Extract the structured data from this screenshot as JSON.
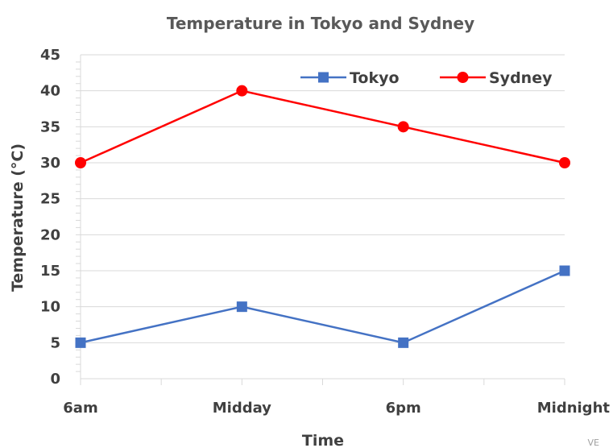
{
  "chart_data": {
    "type": "line",
    "title": "Temperature in Tokyo and Sydney",
    "xlabel": "Time",
    "ylabel": "Temperature (°C)",
    "categories": [
      "6am",
      "Midday",
      "6pm",
      "Midnight"
    ],
    "ylim": [
      0,
      45
    ],
    "yticks": [
      0,
      5,
      10,
      15,
      20,
      25,
      30,
      35,
      40,
      45
    ],
    "grid": true,
    "legend_position": "top-right",
    "series": [
      {
        "name": "Tokyo",
        "values": [
          5,
          10,
          5,
          15
        ],
        "color": "#4472C4",
        "marker": "square"
      },
      {
        "name": "Sydney",
        "values": [
          30,
          40,
          35,
          30
        ],
        "color": "#FF0000",
        "marker": "circle"
      }
    ]
  },
  "corner_text": "VE"
}
